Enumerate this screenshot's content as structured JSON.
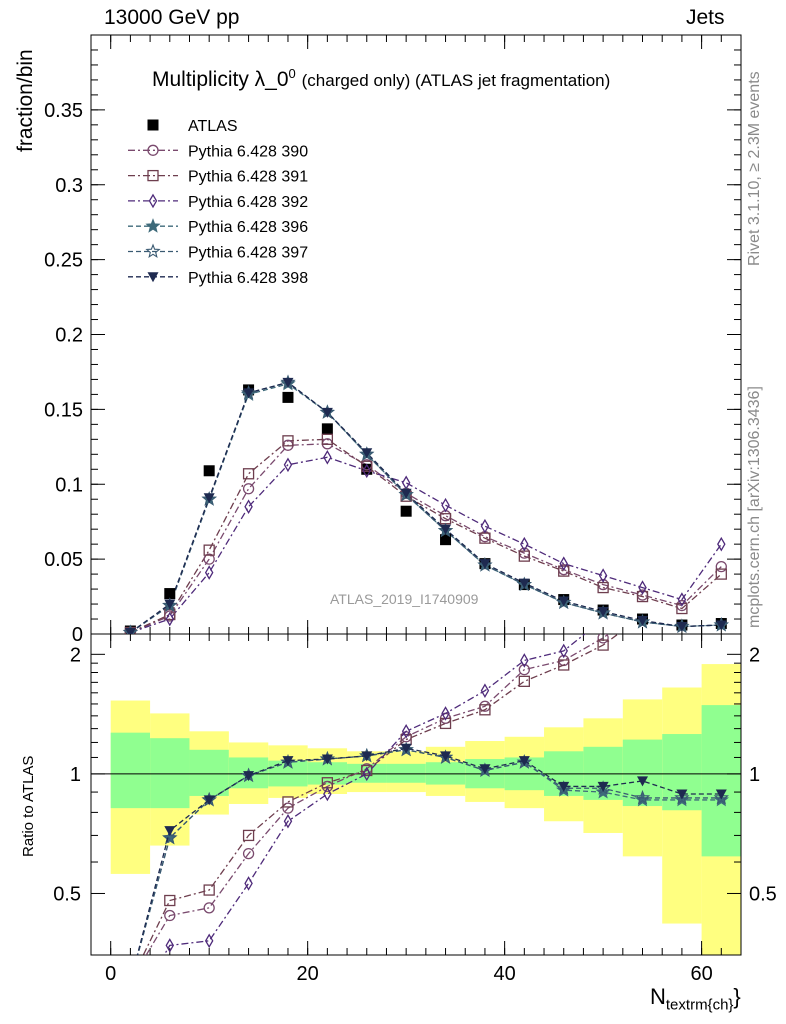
{
  "header": {
    "left": "13000 GeV pp",
    "right": "Jets",
    "title": "Multiplicity λ_0",
    "title_sup": "0",
    "title_suffix": "(charged only) (ATLAS jet fragmentation)",
    "watermark": "ATLAS_2019_I1740909",
    "side_top": "Rivet 3.1.10, ≥ 2.3M events",
    "side_bottom": "mcplots.cern.ch [arXiv:1306.3436]",
    "ylabel_main": "fraction/bin",
    "ylabel_ratio": "Ratio to ATLAS",
    "xlabel_main": "N",
    "xlabel_sub": "textrm{ch}"
  },
  "colors": {
    "ATLAS": "#000000",
    "p390": "#7a4a6e",
    "p391": "#6e3e4e",
    "p392": "#4e2a7a",
    "p396": "#3e6a7a",
    "p397": "#3a5a72",
    "p398": "#1e2a50",
    "band_outer": "#ffff80",
    "band_inner": "#90ff90"
  },
  "chart_data": {
    "type": "line",
    "x": [
      2,
      6,
      10,
      14,
      18,
      22,
      26,
      30,
      34,
      38,
      42,
      46,
      50,
      54,
      58,
      62
    ],
    "xlim": [
      -2,
      64
    ],
    "ylim": [
      0,
      0.4
    ],
    "ratio_ylim": [
      0.35,
      2.25
    ],
    "x_ticks": [
      0,
      20,
      40,
      60
    ],
    "y_ticks": [
      0,
      0.05,
      0.1,
      0.15,
      0.2,
      0.25,
      0.3,
      0.35
    ],
    "ratio_ticks": [
      0.5,
      1,
      2
    ],
    "ratio_minor_ticks": [
      0.6,
      0.7,
      0.8,
      0.9,
      1.1,
      1.2,
      1.3,
      1.4,
      1.5,
      1.6,
      1.7,
      1.8,
      1.9
    ],
    "series": [
      {
        "name": "ATLAS",
        "marker": "square",
        "values": [
          0.002,
          0.027,
          0.109,
          0.163,
          0.158,
          0.137,
          0.11,
          0.082,
          0.063,
          0.047,
          0.033,
          0.023,
          0.016,
          0.01,
          0.006,
          0.007
        ]
      },
      {
        "name": "Pythia 6.428 390",
        "marker": "circle",
        "values": [
          0.001,
          0.012,
          0.05,
          0.097,
          0.126,
          0.127,
          0.113,
          0.094,
          0.079,
          0.065,
          0.054,
          0.043,
          0.033,
          0.026,
          0.019,
          0.045
        ]
      },
      {
        "name": "Pythia 6.428 391",
        "marker": "square-open",
        "values": [
          0.001,
          0.013,
          0.056,
          0.107,
          0.129,
          0.13,
          0.112,
          0.092,
          0.077,
          0.064,
          0.052,
          0.042,
          0.031,
          0.025,
          0.017,
          0.04
        ]
      },
      {
        "name": "Pythia 6.428 392",
        "marker": "diamond",
        "values": [
          0.001,
          0.01,
          0.041,
          0.085,
          0.113,
          0.118,
          0.109,
          0.101,
          0.086,
          0.072,
          0.06,
          0.047,
          0.039,
          0.031,
          0.023,
          0.06
        ]
      },
      {
        "name": "Pythia 6.428 396",
        "marker": "star",
        "values": [
          0.001,
          0.019,
          0.09,
          0.16,
          0.167,
          0.148,
          0.12,
          0.093,
          0.069,
          0.046,
          0.033,
          0.021,
          0.014,
          0.008,
          0.005,
          0.006
        ]
      },
      {
        "name": "Pythia 6.428 397",
        "marker": "star-open",
        "values": [
          0.001,
          0.019,
          0.09,
          0.161,
          0.168,
          0.148,
          0.12,
          0.093,
          0.069,
          0.046,
          0.033,
          0.021,
          0.014,
          0.008,
          0.005,
          0.006
        ]
      },
      {
        "name": "Pythia 6.428 398",
        "marker": "triangle-down",
        "values": [
          0.001,
          0.02,
          0.091,
          0.161,
          0.168,
          0.148,
          0.121,
          0.094,
          0.07,
          0.047,
          0.034,
          0.022,
          0.015,
          0.009,
          0.005,
          0.006
        ]
      }
    ],
    "ratio_series": [
      {
        "name": "Pythia 6.428 390",
        "values": [
          0.3,
          0.44,
          0.46,
          0.63,
          0.82,
          0.93,
          1.03,
          1.24,
          1.38,
          1.48,
          1.83,
          1.93,
          2.2,
          2.6,
          3.0,
          6.0
        ]
      },
      {
        "name": "Pythia 6.428 391",
        "values": [
          0.3,
          0.48,
          0.51,
          0.7,
          0.85,
          0.95,
          1.02,
          1.22,
          1.34,
          1.45,
          1.71,
          1.88,
          2.11,
          2.5,
          2.9,
          5.6
        ]
      },
      {
        "name": "Pythia 6.428 392",
        "values": [
          0.25,
          0.37,
          0.38,
          0.53,
          0.76,
          0.89,
          1.0,
          1.28,
          1.42,
          1.62,
          1.93,
          2.04,
          2.45,
          3.0,
          3.5,
          8.0
        ]
      },
      {
        "name": "Pythia 6.428 396",
        "values": [
          0.3,
          0.69,
          0.86,
          0.99,
          1.07,
          1.09,
          1.11,
          1.15,
          1.1,
          1.02,
          1.07,
          0.91,
          0.9,
          0.86,
          0.86,
          0.86
        ]
      },
      {
        "name": "Pythia 6.428 397",
        "values": [
          0.3,
          0.69,
          0.86,
          0.99,
          1.07,
          1.09,
          1.11,
          1.15,
          1.1,
          1.02,
          1.07,
          0.92,
          0.92,
          0.87,
          0.87,
          0.87
        ]
      },
      {
        "name": "Pythia 6.428 398",
        "values": [
          0.3,
          0.72,
          0.86,
          0.99,
          1.08,
          1.09,
          1.11,
          1.16,
          1.11,
          1.03,
          1.08,
          0.93,
          0.93,
          0.96,
          0.89,
          0.89
        ]
      }
    ],
    "bands": {
      "edges": [
        0,
        4,
        8,
        12,
        16,
        20,
        24,
        28,
        32,
        36,
        40,
        44,
        48,
        52,
        56,
        60,
        64
      ],
      "inner_lo": [
        0.82,
        0.82,
        0.88,
        0.92,
        0.93,
        0.94,
        0.95,
        0.95,
        0.94,
        0.92,
        0.91,
        0.88,
        0.86,
        0.83,
        0.81,
        0.62
      ],
      "inner_hi": [
        1.27,
        1.23,
        1.15,
        1.1,
        1.08,
        1.07,
        1.06,
        1.06,
        1.07,
        1.09,
        1.1,
        1.14,
        1.17,
        1.22,
        1.26,
        1.49
      ],
      "outer_lo": [
        0.56,
        0.66,
        0.79,
        0.84,
        0.87,
        0.89,
        0.9,
        0.9,
        0.88,
        0.85,
        0.82,
        0.76,
        0.71,
        0.62,
        0.42,
        0.3
      ],
      "outer_hi": [
        1.53,
        1.42,
        1.28,
        1.2,
        1.18,
        1.16,
        1.14,
        1.14,
        1.17,
        1.21,
        1.24,
        1.31,
        1.38,
        1.54,
        1.65,
        1.89
      ]
    }
  }
}
